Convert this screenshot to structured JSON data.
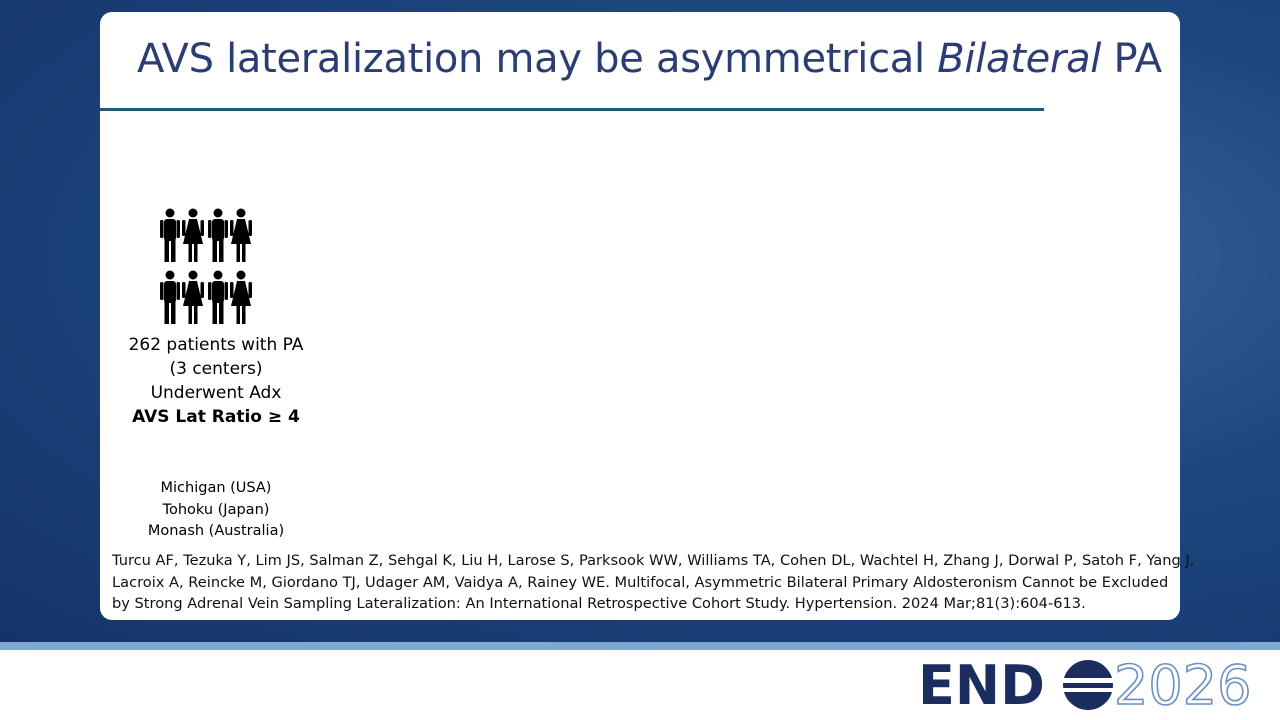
{
  "slide": {
    "title": {
      "before": "AVS lateralization may be asymmetrical",
      "emphasis": "Bilateral",
      "after": "PA"
    },
    "cohort": {
      "lines": [
        "262 patients with PA",
        "(3 centers)",
        "Underwent Adx"
      ],
      "bold": "AVS Lat Ratio ≥ 4"
    },
    "centers": [
      "Michigan (USA)",
      "Tohoku (Japan)",
      "Monash (Australia)"
    ],
    "citation": [
      "Turcu AF, Tezuka Y, Lim JS, Salman Z, Sehgal K, Liu H, Larose S, Parksook WW, Williams TA, Cohen DL, Wachtel H, Zhang J, Dorwal P, Satoh F, Yang J,",
      "Lacroix A, Reincke M, Giordano TJ, Udager AM, Vaidya A, Rainey WE. Multifocal, Asymmetric Bilateral Primary Aldosteronism Cannot be Excluded",
      "by Strong Adrenal Vein Sampling Lateralization: An International Retrospective Cohort Study. Hypertension. 2024 Mar;81(3):604-613."
    ]
  },
  "logo": {
    "brand": "END",
    "year": "2026"
  }
}
